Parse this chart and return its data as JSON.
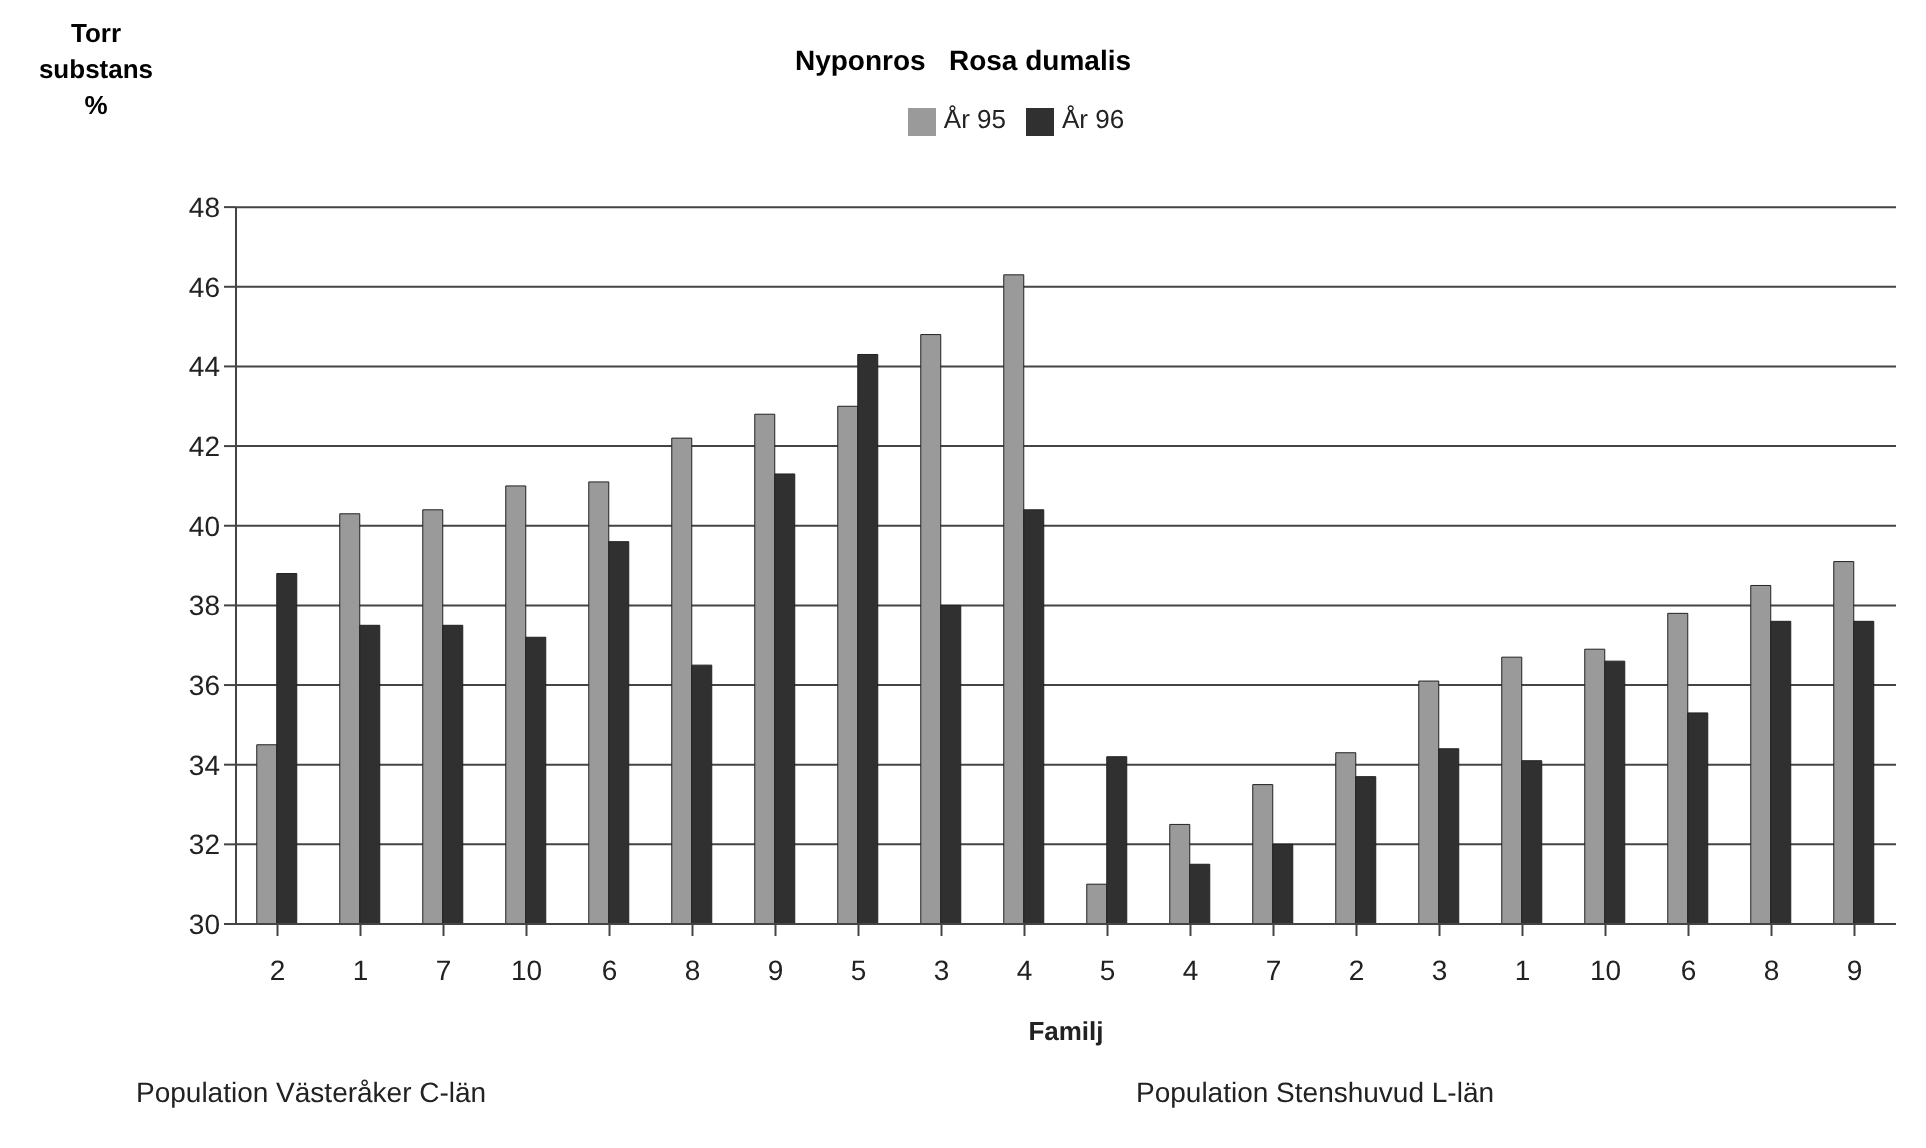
{
  "chart_data": {
    "type": "bar",
    "title": "Nyponros   Rosa dumalis",
    "xlabel": "Familj",
    "ylabel": "Torr substans %",
    "categories": [
      "2",
      "1",
      "7",
      "10",
      "6",
      "8",
      "9",
      "5",
      "3",
      "4",
      "5",
      "4",
      "7",
      "2",
      "3",
      "1",
      "10",
      "6",
      "8",
      "9"
    ],
    "series": [
      {
        "name": "År 95",
        "color": "#9a9a9a",
        "values": [
          34.5,
          40.3,
          40.4,
          41.0,
          41.1,
          42.2,
          42.8,
          43.0,
          44.8,
          46.3,
          31.0,
          32.5,
          33.5,
          34.3,
          36.1,
          36.7,
          36.9,
          37.8,
          38.5,
          39.1
        ]
      },
      {
        "name": "År 96",
        "color": "#303030",
        "values": [
          38.8,
          37.5,
          37.5,
          37.2,
          39.6,
          36.5,
          41.3,
          44.3,
          38.0,
          40.4,
          34.2,
          31.5,
          32.0,
          33.7,
          34.4,
          34.1,
          36.6,
          35.3,
          37.6,
          37.6
        ]
      }
    ],
    "ylim": [
      30,
      48
    ],
    "yticks": [
      30,
      32,
      34,
      36,
      38,
      40,
      42,
      44,
      46,
      48
    ],
    "grid": "y",
    "legend": "top",
    "annotations": [
      "Population Västeråker C-län",
      "Population Stenshuvud L-län"
    ]
  }
}
